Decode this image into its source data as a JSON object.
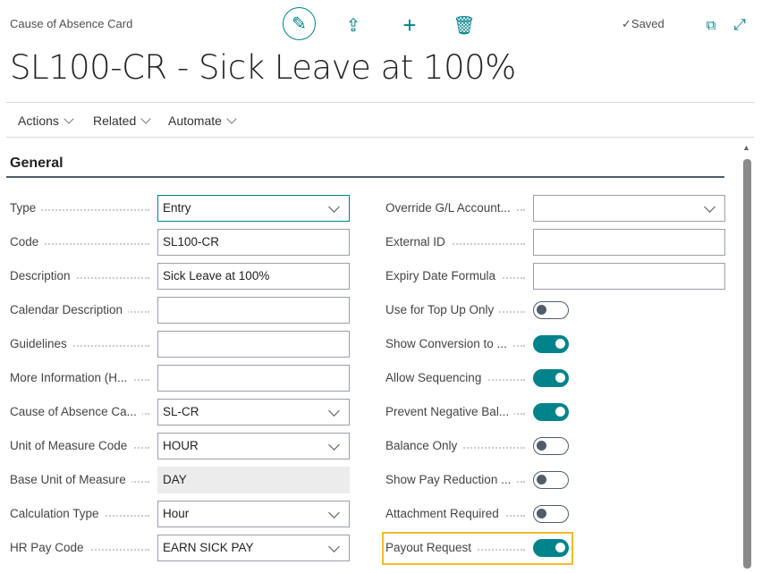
{
  "header": {
    "breadcrumb": "Cause of Absence Card",
    "saved": "✓Saved",
    "title": "SL100-CR - Sick Leave at 100%",
    "icons": [
      "edit-icon",
      "share-icon",
      "new-icon",
      "delete-icon",
      "open-new-window-icon",
      "expand-icon"
    ]
  },
  "menu": [
    "Actions",
    "Related",
    "Automate"
  ],
  "section": "General",
  "left_fields": [
    {
      "label": "Type",
      "value": "Entry",
      "kind": "dropdown",
      "focused": true
    },
    {
      "label": "Code",
      "value": "SL100-CR",
      "kind": "text"
    },
    {
      "label": "Description",
      "value": "Sick Leave at 100%",
      "kind": "text"
    },
    {
      "label": "Calendar Description",
      "value": "",
      "kind": "text"
    },
    {
      "label": "Guidelines",
      "value": "",
      "kind": "text"
    },
    {
      "label": "More Information (H...",
      "value": "",
      "kind": "text"
    },
    {
      "label": "Cause of Absence Ca...",
      "value": "SL-CR",
      "kind": "dropdown"
    },
    {
      "label": "Unit of Measure Code",
      "value": "HOUR",
      "kind": "dropdown"
    },
    {
      "label": "Base Unit of Measure",
      "value": "DAY",
      "kind": "readonly"
    },
    {
      "label": "Calculation Type",
      "value": "Hour",
      "kind": "dropdown"
    },
    {
      "label": "HR Pay Code",
      "value": "EARN SICK PAY",
      "kind": "dropdown"
    }
  ],
  "right_fields": [
    {
      "label": "Override G/L Account...",
      "value": "",
      "kind": "dropdown"
    },
    {
      "label": "External ID",
      "value": "",
      "kind": "text"
    },
    {
      "label": "Expiry Date Formula",
      "value": "",
      "kind": "text"
    },
    {
      "label": "Use for Top Up Only",
      "on": false,
      "kind": "toggle"
    },
    {
      "label": "Show Conversion to ...",
      "on": true,
      "kind": "toggle"
    },
    {
      "label": "Allow Sequencing",
      "on": true,
      "kind": "toggle"
    },
    {
      "label": "Prevent Negative Bal...",
      "on": true,
      "kind": "toggle"
    },
    {
      "label": "Balance Only",
      "on": false,
      "kind": "toggle"
    },
    {
      "label": "Show Pay Reduction ...",
      "on": false,
      "kind": "toggle"
    },
    {
      "label": "Attachment Required",
      "on": false,
      "kind": "toggle"
    },
    {
      "label": "Payout Request",
      "on": true,
      "kind": "toggle",
      "highlighted": true
    }
  ],
  "colors": {
    "accent": "#00838a",
    "highlight": "#f7b928"
  }
}
